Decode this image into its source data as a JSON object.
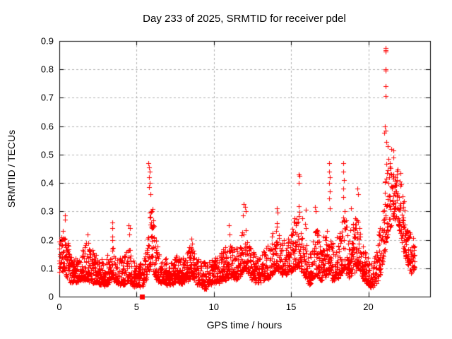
{
  "chart_data": {
    "type": "scatter",
    "title": "Day 233 of 2025, SRMTID for receiver pdel",
    "xlabel": "GPS time / hours",
    "ylabel": "SRMTID / TECUs",
    "xlim": [
      0,
      24
    ],
    "ylim": [
      0,
      0.9
    ],
    "xticks": [
      0,
      5,
      10,
      15,
      20
    ],
    "xtick_labels": [
      "0",
      "5",
      "10",
      "15",
      "20"
    ],
    "yticks": [
      0,
      0.1,
      0.2,
      0.3,
      0.4,
      0.5,
      0.6,
      0.7,
      0.8,
      0.9
    ],
    "ytick_labels": [
      "0",
      "0.1",
      "0.2",
      "0.3",
      "0.4",
      "0.5",
      "0.6",
      "0.7",
      "0.8",
      "0.9"
    ],
    "grid": true,
    "legend": "none",
    "marker": "plus",
    "marker_color": "#ff0000",
    "grid_color": "#b0b0b0",
    "frame_color": "#000000",
    "series_name": "SRMTID",
    "data_start_hour": 0.0,
    "data_end_hour": 23.0,
    "envelope": [
      [
        0.0,
        0.08,
        0.22
      ],
      [
        0.35,
        0.09,
        0.24
      ],
      [
        0.6,
        0.06,
        0.18
      ],
      [
        0.9,
        0.05,
        0.15
      ],
      [
        1.2,
        0.05,
        0.13
      ],
      [
        1.5,
        0.06,
        0.16
      ],
      [
        1.85,
        0.06,
        0.2
      ],
      [
        2.1,
        0.05,
        0.17
      ],
      [
        2.5,
        0.05,
        0.14
      ],
      [
        2.9,
        0.04,
        0.12
      ],
      [
        3.2,
        0.05,
        0.16
      ],
      [
        3.4,
        0.07,
        0.22
      ],
      [
        3.65,
        0.05,
        0.16
      ],
      [
        4.0,
        0.04,
        0.13
      ],
      [
        4.3,
        0.05,
        0.16
      ],
      [
        4.5,
        0.06,
        0.2
      ],
      [
        4.75,
        0.04,
        0.14
      ],
      [
        5.1,
        0.04,
        0.11
      ],
      [
        5.45,
        0.04,
        0.12
      ],
      [
        5.7,
        0.07,
        0.22
      ],
      [
        5.85,
        0.1,
        0.31
      ],
      [
        6.0,
        0.12,
        0.33
      ],
      [
        6.15,
        0.08,
        0.24
      ],
      [
        6.4,
        0.05,
        0.16
      ],
      [
        6.8,
        0.05,
        0.14
      ],
      [
        7.2,
        0.04,
        0.12
      ],
      [
        7.6,
        0.05,
        0.14
      ],
      [
        8.0,
        0.05,
        0.14
      ],
      [
        8.3,
        0.06,
        0.16
      ],
      [
        8.55,
        0.07,
        0.19
      ],
      [
        8.8,
        0.05,
        0.15
      ],
      [
        9.1,
        0.04,
        0.13
      ],
      [
        9.5,
        0.03,
        0.12
      ],
      [
        9.9,
        0.05,
        0.13
      ],
      [
        10.3,
        0.05,
        0.15
      ],
      [
        10.7,
        0.06,
        0.18
      ],
      [
        11.0,
        0.07,
        0.2
      ],
      [
        11.3,
        0.06,
        0.17
      ],
      [
        11.6,
        0.07,
        0.19
      ],
      [
        11.85,
        0.09,
        0.24
      ],
      [
        12.0,
        0.1,
        0.27
      ],
      [
        12.2,
        0.08,
        0.22
      ],
      [
        12.5,
        0.06,
        0.16
      ],
      [
        12.9,
        0.05,
        0.14
      ],
      [
        13.3,
        0.06,
        0.16
      ],
      [
        13.6,
        0.07,
        0.19
      ],
      [
        13.9,
        0.09,
        0.24
      ],
      [
        14.1,
        0.1,
        0.27
      ],
      [
        14.4,
        0.08,
        0.21
      ],
      [
        14.7,
        0.08,
        0.2
      ],
      [
        15.0,
        0.09,
        0.23
      ],
      [
        15.25,
        0.1,
        0.29
      ],
      [
        15.5,
        0.11,
        0.34
      ],
      [
        15.7,
        0.09,
        0.28
      ],
      [
        15.95,
        0.07,
        0.27
      ],
      [
        16.15,
        0.04,
        0.14
      ],
      [
        16.4,
        0.06,
        0.2
      ],
      [
        16.65,
        0.08,
        0.26
      ],
      [
        16.9,
        0.06,
        0.19
      ],
      [
        17.15,
        0.07,
        0.22
      ],
      [
        17.45,
        0.08,
        0.25
      ],
      [
        17.7,
        0.06,
        0.19
      ],
      [
        18.0,
        0.06,
        0.21
      ],
      [
        18.25,
        0.08,
        0.26
      ],
      [
        18.45,
        0.1,
        0.32
      ],
      [
        18.7,
        0.07,
        0.22
      ],
      [
        19.0,
        0.08,
        0.26
      ],
      [
        19.35,
        0.1,
        0.3
      ],
      [
        19.6,
        0.07,
        0.21
      ],
      [
        19.9,
        0.05,
        0.14
      ],
      [
        20.2,
        0.03,
        0.12
      ],
      [
        20.5,
        0.05,
        0.17
      ],
      [
        20.8,
        0.08,
        0.26
      ],
      [
        21.0,
        0.14,
        0.38
      ],
      [
        21.15,
        0.2,
        0.48
      ],
      [
        21.35,
        0.24,
        0.5
      ],
      [
        21.6,
        0.27,
        0.5
      ],
      [
        21.85,
        0.28,
        0.47
      ],
      [
        22.05,
        0.22,
        0.44
      ],
      [
        22.25,
        0.16,
        0.38
      ],
      [
        22.5,
        0.12,
        0.28
      ],
      [
        22.75,
        0.08,
        0.22
      ],
      [
        23.0,
        0.09,
        0.19
      ]
    ],
    "outliers": [
      [
        0.35,
        0.285
      ],
      [
        0.38,
        0.27
      ],
      [
        1.85,
        0.22
      ],
      [
        3.42,
        0.26
      ],
      [
        3.45,
        0.24
      ],
      [
        4.48,
        0.25
      ],
      [
        4.55,
        0.24
      ],
      [
        4.52,
        0.22
      ],
      [
        5.78,
        0.47
      ],
      [
        5.8,
        0.455
      ],
      [
        5.83,
        0.44
      ],
      [
        5.8,
        0.42
      ],
      [
        5.85,
        0.4
      ],
      [
        5.82,
        0.385
      ],
      [
        5.88,
        0.36
      ],
      [
        8.55,
        0.205
      ],
      [
        10.95,
        0.25
      ],
      [
        11.0,
        0.22
      ],
      [
        11.95,
        0.325
      ],
      [
        12.0,
        0.315
      ],
      [
        12.05,
        0.3
      ],
      [
        11.9,
        0.285
      ],
      [
        14.08,
        0.31
      ],
      [
        14.12,
        0.295
      ],
      [
        15.5,
        0.43
      ],
      [
        15.53,
        0.425
      ],
      [
        15.48,
        0.4
      ],
      [
        15.95,
        0.305
      ],
      [
        16.55,
        0.315
      ],
      [
        16.6,
        0.3
      ],
      [
        17.45,
        0.47
      ],
      [
        17.47,
        0.44
      ],
      [
        17.5,
        0.42
      ],
      [
        17.44,
        0.4
      ],
      [
        17.5,
        0.37
      ],
      [
        17.48,
        0.345
      ],
      [
        17.52,
        0.31
      ],
      [
        18.38,
        0.47
      ],
      [
        18.4,
        0.44
      ],
      [
        18.42,
        0.41
      ],
      [
        18.36,
        0.38
      ],
      [
        18.4,
        0.35
      ],
      [
        18.9,
        0.31
      ],
      [
        19.3,
        0.38
      ],
      [
        19.35,
        0.36
      ],
      [
        21.1,
        0.875
      ],
      [
        21.13,
        0.868
      ],
      [
        21.11,
        0.862
      ],
      [
        21.1,
        0.8
      ],
      [
        21.12,
        0.795
      ],
      [
        21.1,
        0.742
      ],
      [
        21.1,
        0.705
      ],
      [
        21.08,
        0.6
      ],
      [
        21.11,
        0.585
      ],
      [
        21.05,
        0.578
      ],
      [
        21.18,
        0.545
      ],
      [
        21.25,
        0.53
      ],
      [
        21.5,
        0.52
      ],
      [
        21.6,
        0.515
      ]
    ],
    "special_points": [
      {
        "x": 5.35,
        "y": 0.0,
        "marker": "square"
      }
    ],
    "generation": {
      "step": 0.016,
      "power": 1.9,
      "x_jitter": 0.05,
      "seed": 42,
      "extra_point_prob1": 0.6,
      "extra_point_prob2": 0.3
    }
  }
}
